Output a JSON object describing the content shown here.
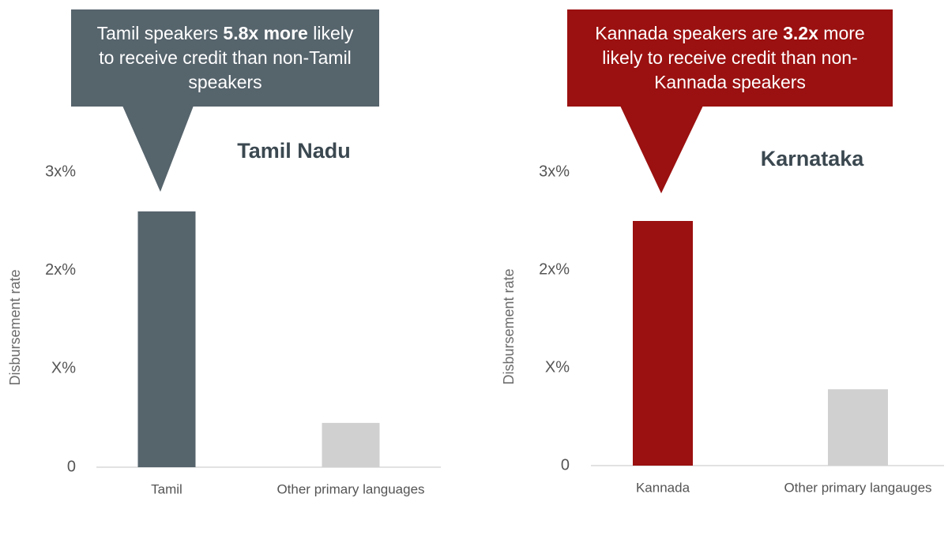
{
  "chart_data": [
    {
      "type": "bar",
      "title": "Tamil Nadu",
      "annotation": [
        "Tamil speakers ",
        "5.8x more",
        " likely to receive credit than non-Tamil speakers"
      ],
      "annotation_color": "#56646c",
      "y_label": "Disbursement rate",
      "categories": [
        "Tamil",
        "Other primary languages"
      ],
      "values": [
        2.6,
        0.45
      ],
      "colors": [
        "#56646c",
        "#d0d0d0"
      ],
      "ylim": [
        0,
        3
      ],
      "yticks": [
        0,
        {
          "value": 1,
          "label": "X%"
        },
        {
          "value": 2,
          "label": "2x%"
        },
        {
          "value": 3,
          "label": "3x%"
        }
      ]
    },
    {
      "type": "bar",
      "title": "Karnataka",
      "annotation": [
        "Kannada speakers are ",
        "3.2x",
        " more likely to receive credit than non-Kannada speakers"
      ],
      "annotation_color": "#9b1010",
      "y_label": "Disbursement rate",
      "categories": [
        "Kannada",
        "Other primary langauges"
      ],
      "values": [
        2.5,
        0.78
      ],
      "colors": [
        "#9b1010",
        "#d0d0d0"
      ],
      "ylim": [
        0,
        3
      ],
      "yticks": [
        0,
        {
          "value": 1,
          "label": "X%"
        },
        {
          "value": 2,
          "label": "2x%"
        },
        {
          "value": 3,
          "label": "3x%"
        }
      ]
    }
  ]
}
